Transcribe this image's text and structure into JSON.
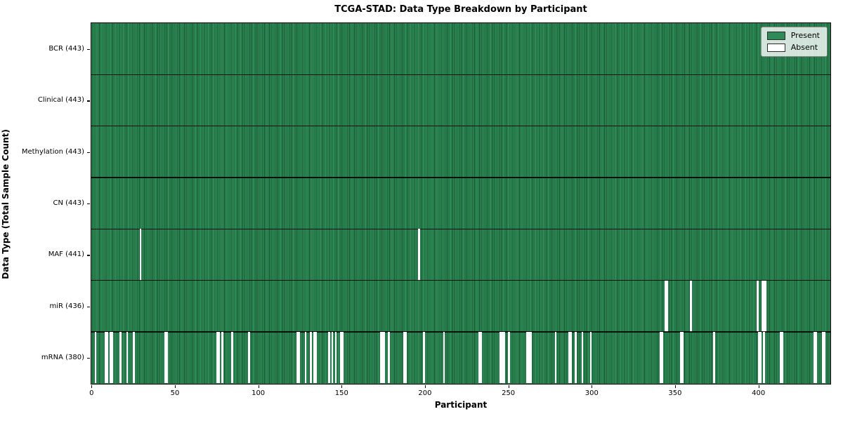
{
  "chart_data": {
    "type": "heatmap",
    "title": "TCGA-STAD: Data Type Breakdown by Participant",
    "xlabel": "Participant",
    "ylabel": "Data Type (Total Sample Count)",
    "n_participants": 443,
    "x_ticks": [
      0,
      50,
      100,
      150,
      200,
      250,
      300,
      350,
      400
    ],
    "legend": [
      {
        "label": "Present",
        "color": "#2e8b57"
      },
      {
        "label": "Absent",
        "color": "#ffffff"
      }
    ],
    "colors": {
      "present": "#2e8b57",
      "bar_edge": "#14532d",
      "absent": "#ffffff",
      "axis": "#000000"
    },
    "rows": [
      {
        "label": "BCR (443)",
        "name": "BCR",
        "present_count": 443,
        "absent_participants": []
      },
      {
        "label": "Clinical (443)",
        "name": "Clinical",
        "present_count": 443,
        "absent_participants": []
      },
      {
        "label": "Methylation (443)",
        "name": "Methylation",
        "present_count": 443,
        "absent_participants": []
      },
      {
        "label": "CN (443)",
        "name": "CN",
        "present_count": 443,
        "absent_participants": []
      },
      {
        "label": "MAF (441)",
        "name": "MAF",
        "present_count": 441,
        "absent_participants": [
          29,
          196
        ]
      },
      {
        "label": "miR (436)",
        "name": "miR",
        "present_count": 436,
        "absent_participants": [
          344,
          345,
          359,
          399,
          402,
          403,
          404
        ]
      },
      {
        "label": "mRNA (380)",
        "name": "mRNA",
        "present_count": 380,
        "absent_participants": [
          2,
          8,
          9,
          11,
          12,
          17,
          21,
          25,
          44,
          45,
          75,
          76,
          78,
          84,
          94,
          123,
          124,
          128,
          131,
          133,
          134,
          142,
          144,
          146,
          149,
          150,
          173,
          174,
          175,
          178,
          187,
          188,
          199,
          211,
          232,
          233,
          245,
          246,
          247,
          250,
          261,
          262,
          263,
          278,
          286,
          287,
          290,
          294,
          299,
          341,
          342,
          353,
          354,
          373,
          400,
          401,
          403,
          413,
          414,
          433,
          434,
          438,
          439
        ]
      }
    ]
  }
}
